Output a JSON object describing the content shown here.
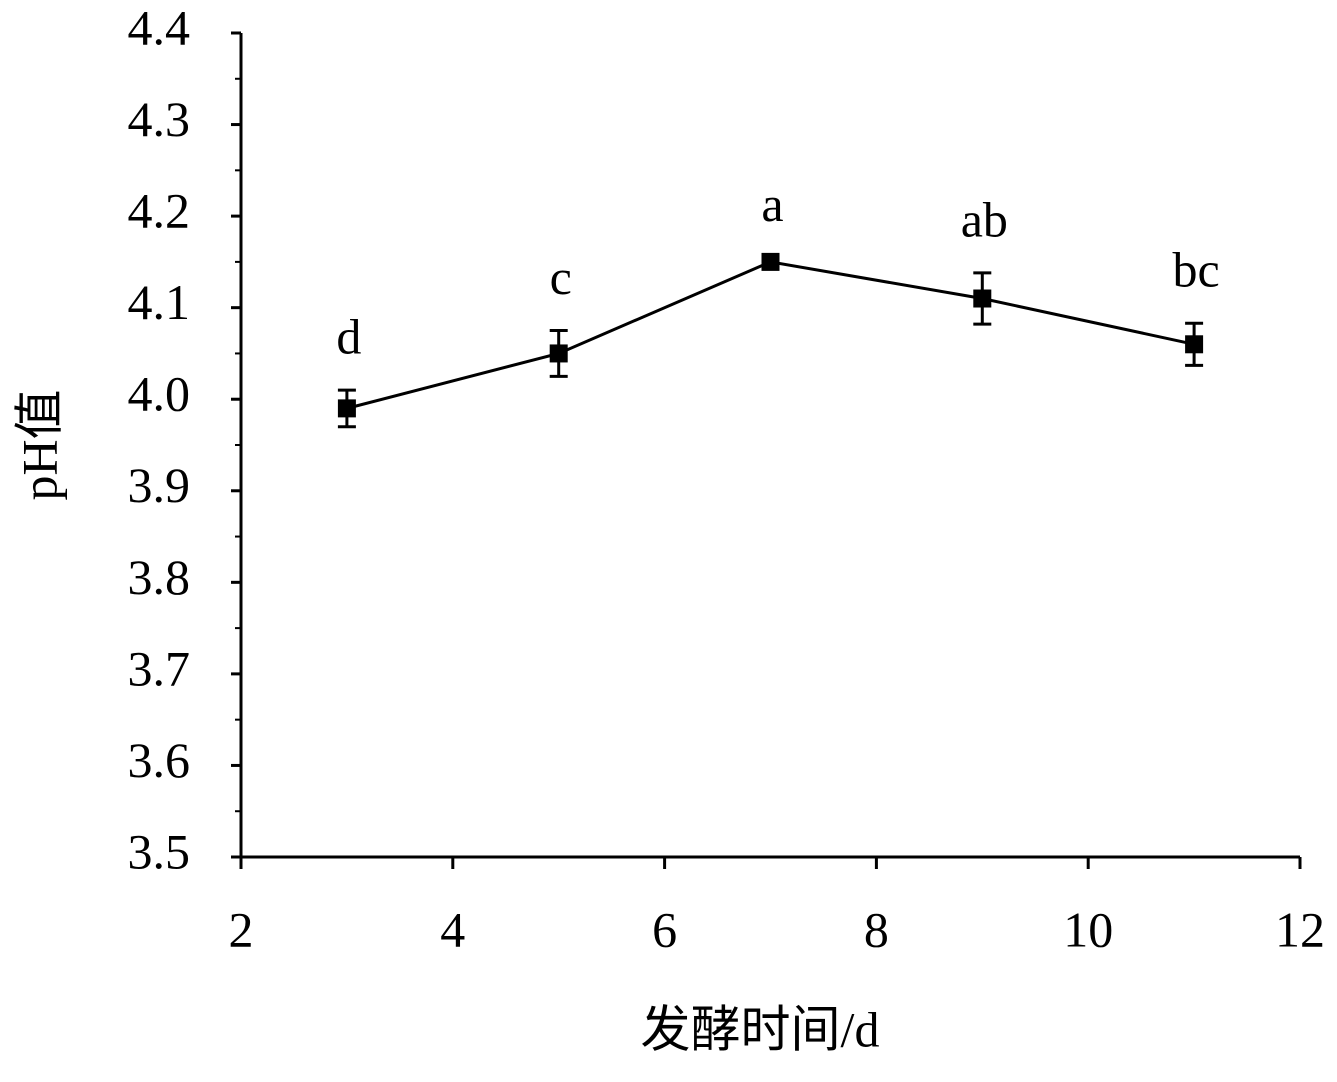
{
  "chart_data": {
    "type": "line",
    "x_label": "发酵时间/d",
    "y_label": "pH值",
    "x": [
      3,
      5,
      7,
      9,
      11
    ],
    "series": [
      {
        "color": "#000000",
        "values": [
          3.99,
          4.05,
          4.15,
          4.11,
          4.06
        ],
        "errors": [
          0.02,
          0.025,
          0.005,
          0.028,
          0.023
        ],
        "annotations": [
          "d",
          "c",
          "a",
          "ab",
          "bc"
        ]
      }
    ],
    "xlim": [
      2,
      12
    ],
    "xticks": [
      2,
      4,
      6,
      8,
      10,
      12
    ],
    "ylim": [
      3.5,
      4.4
    ],
    "yticks": [
      {
        "value": 3.5,
        "label": "3.5"
      },
      3.6,
      3.7,
      3.8,
      3.9,
      {
        "value": 4,
        "label": "4.0"
      },
      4.1,
      4.2,
      4.3,
      4.4
    ],
    "yminorticks": [
      3.55,
      3.65,
      3.75,
      3.85,
      3.95,
      4.05,
      4.15,
      4.25,
      4.35
    ]
  }
}
